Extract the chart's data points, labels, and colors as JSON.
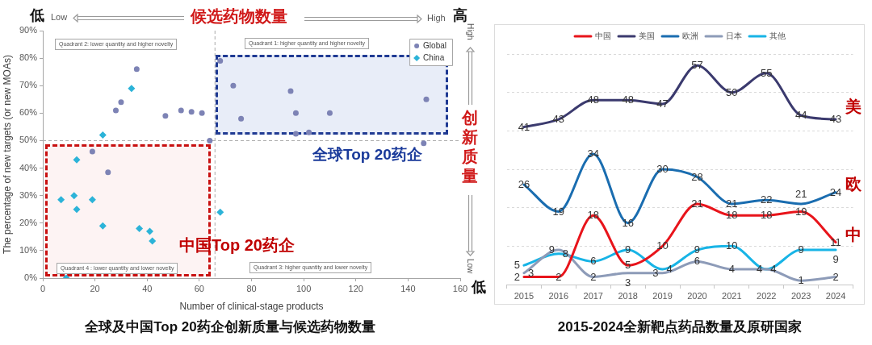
{
  "chart_data": [
    {
      "type": "scatter",
      "title": "全球及中国Top 20药企创新质量与候选药物数量",
      "xlabel": "Number of clinical-stage products",
      "ylabel": "The percentage of new targets (or new MOAs)",
      "xlim": [
        0,
        160
      ],
      "xticks": [
        0,
        20,
        40,
        60,
        80,
        100,
        120,
        140,
        160
      ],
      "ylim": [
        0,
        90
      ],
      "yticks": [
        {
          "value": 0,
          "label": "0%"
        },
        {
          "value": 10,
          "label": "10%"
        },
        {
          "value": 20,
          "label": "20%"
        },
        {
          "value": 30,
          "label": "30%"
        },
        {
          "value": 40,
          "label": "40%"
        },
        {
          "value": 50,
          "label": "50%"
        },
        {
          "value": 60,
          "label": "60%"
        },
        {
          "value": 70,
          "label": "70%"
        },
        {
          "value": 80,
          "label": "80%"
        },
        {
          "value": 90,
          "label": "90%"
        }
      ],
      "legend": "top right",
      "series": [
        {
          "name": "Global",
          "color": "#7d83b5",
          "marker": "circle",
          "x": [
            36,
            28,
            30,
            47,
            53,
            57,
            61,
            64,
            68,
            73,
            95,
            76,
            97,
            110,
            147,
            97,
            102,
            146,
            19,
            25
          ],
          "values": [
            76,
            61,
            64,
            59,
            61,
            60.5,
            60,
            50,
            79,
            70,
            68,
            58,
            60,
            60,
            65,
            52.5,
            53,
            49,
            46,
            38.5
          ]
        },
        {
          "name": "China",
          "color": "#2cb3d8",
          "marker": "diamond",
          "x": [
            34,
            23,
            13,
            7,
            12,
            13,
            19,
            23,
            37,
            41,
            42,
            9,
            68
          ],
          "values": [
            69,
            52,
            43,
            28.5,
            30,
            25,
            28.5,
            19,
            18,
            17,
            13.5,
            0,
            24
          ]
        }
      ],
      "ref_lines": [
        {
          "axis": "x",
          "value": 66,
          "color": "#aaaaaa",
          "line_style": "dashed"
        },
        {
          "axis": "y",
          "value": 50,
          "color": "#aaaaaa",
          "line_style": "dashed"
        }
      ],
      "annotations": [
        "低",
        "Low",
        "候选药物数量",
        "High",
        "高",
        "High",
        "创新质量",
        "Low",
        "低",
        "Quadrant 2: lower quantity and higher novelty",
        "Quadrant 1: higher quantity and higher novelty",
        "Quadrant 4 : lower quantity and lower novelty",
        "Quadrant 3: higher quantity and lower novelty",
        "全球Top 20药企",
        "中国Top 20药企"
      ]
    },
    {
      "type": "line",
      "title": "2015-2024全新靶点药品数量及原研国家",
      "categories": [
        "2015",
        "2016",
        "2017",
        "2018",
        "2019",
        "2020",
        "2021",
        "2022",
        "2023",
        "2024"
      ],
      "ylim": [
        0,
        60
      ],
      "yticks": [
        {
          "value": 0,
          "label": null
        },
        {
          "value": 10,
          "label": null
        },
        {
          "value": 20,
          "label": null
        },
        {
          "value": 30,
          "label": null
        },
        {
          "value": 40,
          "label": null
        },
        {
          "value": 50,
          "label": null
        },
        {
          "value": 60,
          "label": null
        }
      ],
      "tick_labels": "x",
      "grid": "y",
      "legend": "top",
      "marker": "none",
      "data_labels": true,
      "series": [
        {
          "name": "中国",
          "color": "#e8141b",
          "values": [
            2,
            2,
            18,
            5,
            10,
            21,
            18,
            18,
            19,
            11
          ]
        },
        {
          "name": "美国",
          "color": "#3b3a6e",
          "values": [
            41,
            43,
            48,
            48,
            47,
            57,
            50,
            55,
            44,
            43
          ]
        },
        {
          "name": "欧洲",
          "color": "#1a6db0",
          "values": [
            26,
            19,
            34,
            16,
            30,
            28,
            21,
            22,
            21,
            24
          ]
        },
        {
          "name": "日本",
          "color": "#8d9bb8",
          "values": [
            3,
            9,
            2,
            3,
            3,
            6,
            4,
            4,
            1,
            2
          ]
        },
        {
          "name": "其他",
          "color": "#18b4e6",
          "values": [
            5,
            8,
            6,
            9,
            4,
            9,
            10,
            4,
            9,
            9
          ]
        }
      ],
      "annotations": [
        "美",
        "欧",
        "中"
      ]
    }
  ]
}
